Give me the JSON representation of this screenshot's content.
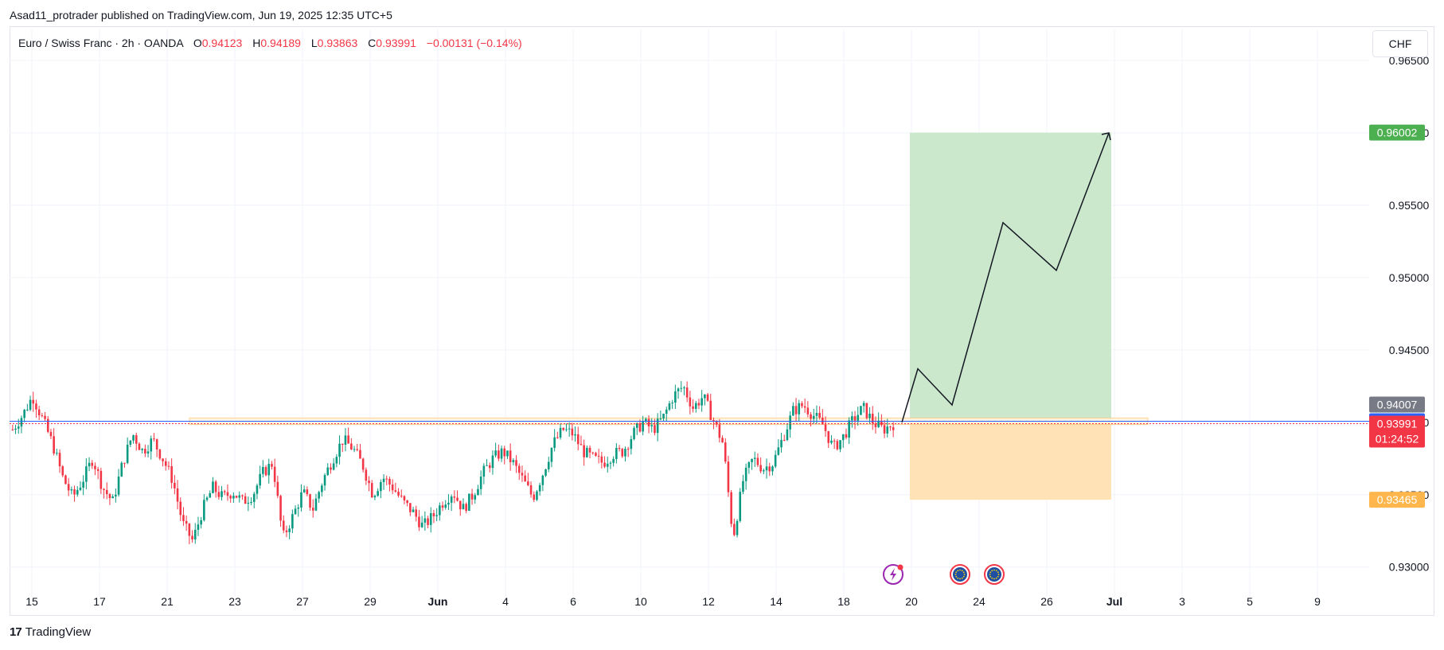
{
  "publication": "Asad11_protrader published on TradingView.com, Jun 19, 2025 12:35 UTC+5",
  "legend": {
    "symbol": "Euro / Swiss Franc · 2h · OANDA",
    "o_label": "O",
    "o_value": "0.94123",
    "h_label": "H",
    "h_value": "0.94189",
    "l_label": "L",
    "l_value": "0.93863",
    "c_label": "C",
    "c_value": "0.93991",
    "change": "−0.00131 (−0.14%)"
  },
  "currency_button": "CHF",
  "branding": {
    "logo": "17",
    "name": "TradingView"
  },
  "colors": {
    "up": "#089981",
    "down": "#f23645",
    "grid": "#f0f3fa",
    "profit_zone": "#c8e6c9",
    "loss_zone": "#ffe0b2",
    "target_tag": "#4caf50",
    "stop_tag": "#ffb74d",
    "last_tag": "#f23645",
    "blue_tag": "#2962ff",
    "gray_tag": "#787b86"
  },
  "event_icons": [
    "lightning-event-icon",
    "eu-flag-event-icon",
    "eu-flag-event-icon"
  ],
  "chart_data": {
    "type": "candlestick",
    "symbol": "EURCHF",
    "interval": "2h",
    "ylim": [
      0.9285,
      0.9655
    ],
    "y_ticks": [
      "0.93000",
      "0.93500",
      "0.94000",
      "0.94500",
      "0.95000",
      "0.95500",
      "0.96000",
      "0.96500"
    ],
    "x_ticks": [
      "15",
      "17",
      "21",
      "23",
      "27",
      "29",
      "Jun",
      "4",
      "6",
      "10",
      "12",
      "14",
      "18",
      "20",
      "24",
      "26",
      "Jul",
      "3",
      "5",
      "9"
    ],
    "grid": true,
    "price_path": [
      0.9395,
      0.9405,
      0.9418,
      0.9402,
      0.9385,
      0.9362,
      0.9348,
      0.936,
      0.9375,
      0.9355,
      0.9345,
      0.9372,
      0.9392,
      0.938,
      0.9388,
      0.9375,
      0.936,
      0.933,
      0.9318,
      0.934,
      0.9355,
      0.9348,
      0.9352,
      0.9345,
      0.935,
      0.9365,
      0.9372,
      0.932,
      0.9335,
      0.9352,
      0.934,
      0.936,
      0.9375,
      0.9388,
      0.9382,
      0.937,
      0.935,
      0.9362,
      0.9355,
      0.9345,
      0.9338,
      0.9328,
      0.9335,
      0.9345,
      0.9352,
      0.934,
      0.935,
      0.9365,
      0.9375,
      0.938,
      0.9372,
      0.936,
      0.9348,
      0.9365,
      0.9385,
      0.9395,
      0.9392,
      0.938,
      0.9375,
      0.9372,
      0.9378,
      0.938,
      0.9392,
      0.94,
      0.9395,
      0.9403,
      0.9418,
      0.9425,
      0.941,
      0.9418,
      0.9402,
      0.9385,
      0.932,
      0.936,
      0.9375,
      0.9368,
      0.9372,
      0.939,
      0.9408,
      0.9412,
      0.9405,
      0.9398,
      0.9382,
      0.939,
      0.9402,
      0.941,
      0.94,
      0.9395,
      0.9399
    ],
    "horizontal_lines": [
      {
        "price": 0.94007,
        "color": "#2962ff"
      },
      {
        "price": 0.93991,
        "color": "#f23645"
      }
    ],
    "zone_band": [
      0.93985,
      0.9403
    ],
    "position": {
      "type": "long",
      "entry": 0.94007,
      "target": 0.96002,
      "stop": 0.93465
    },
    "projection_path": [
      0.94,
      0.9437,
      0.9412,
      0.9538,
      0.9505,
      0.96
    ],
    "price_tags": {
      "target": "0.96002",
      "gray": "0.94007",
      "entry": "0.94007",
      "last": "0.93991",
      "countdown": "01:24:52",
      "stop": "0.93465"
    }
  }
}
